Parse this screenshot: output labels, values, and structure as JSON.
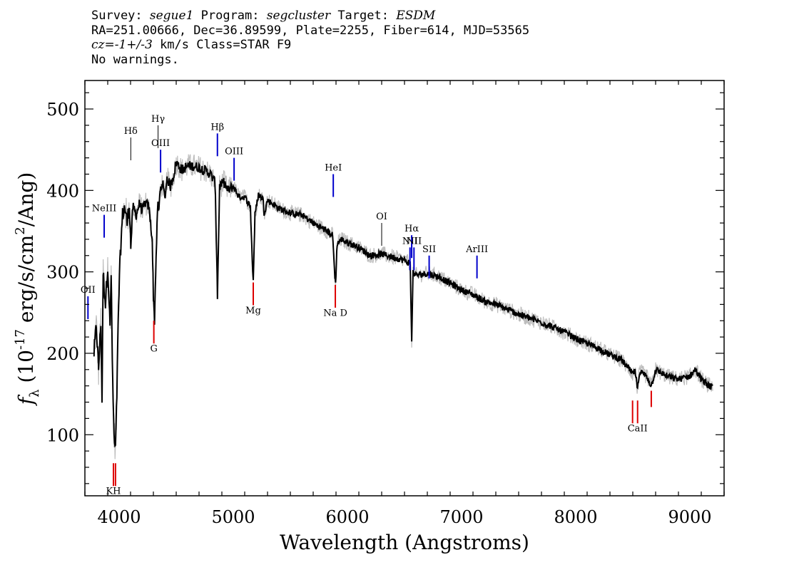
{
  "header": {
    "line1": {
      "survey_label": "Survey: ",
      "survey": "segue1",
      "program_label": " Program: ",
      "program": "segcluster",
      "target_label": " Target: ",
      "target": "ESDM"
    },
    "line2": "RA=251.00666, Dec=36.89599, Plate=2255, Fiber=614, MJD=53565",
    "line3": {
      "cz": "cz=-1+/-3",
      "rest": " km/s Class=STAR F9"
    },
    "line4": "No warnings."
  },
  "chart_data": {
    "type": "line",
    "xlabel": "Wavelength (Angstroms)",
    "ylabel": "f_λ (10^-17 erg/s/cm^2/Ang)",
    "xlim": [
      3700,
      9300
    ],
    "ylim": [
      25,
      535
    ],
    "xticks": [
      4000,
      5000,
      6000,
      7000,
      8000,
      9000
    ],
    "yticks": [
      100,
      200,
      300,
      400,
      500
    ],
    "series": [
      {
        "color": "#000000",
        "points": [
          [
            3780,
            200
          ],
          [
            3800,
            235
          ],
          [
            3820,
            180
          ],
          [
            3840,
            240
          ],
          [
            3850,
            140
          ],
          [
            3860,
            300
          ],
          [
            3880,
            260
          ],
          [
            3900,
            310
          ],
          [
            3920,
            230
          ],
          [
            3930,
            300
          ],
          [
            3940,
            190
          ],
          [
            3955,
            95
          ],
          [
            3968,
            80
          ],
          [
            3980,
            150
          ],
          [
            3995,
            260
          ],
          [
            4010,
            320
          ],
          [
            4030,
            370
          ],
          [
            4050,
            380
          ],
          [
            4070,
            360
          ],
          [
            4090,
            385
          ],
          [
            4102,
            330
          ],
          [
            4120,
            380
          ],
          [
            4150,
            370
          ],
          [
            4180,
            385
          ],
          [
            4200,
            375
          ],
          [
            4230,
            385
          ],
          [
            4260,
            380
          ],
          [
            4290,
            340
          ],
          [
            4300,
            270
          ],
          [
            4310,
            240
          ],
          [
            4320,
            300
          ],
          [
            4340,
            390
          ],
          [
            4345,
            370
          ],
          [
            4360,
            400
          ],
          [
            4380,
            410
          ],
          [
            4400,
            390
          ],
          [
            4420,
            415
          ],
          [
            4450,
            405
          ],
          [
            4480,
            420
          ],
          [
            4500,
            435
          ],
          [
            4550,
            425
          ],
          [
            4600,
            430
          ],
          [
            4650,
            430
          ],
          [
            4700,
            428
          ],
          [
            4750,
            425
          ],
          [
            4800,
            420
          ],
          [
            4840,
            410
          ],
          [
            4858,
            300
          ],
          [
            4861,
            270
          ],
          [
            4880,
            405
          ],
          [
            4920,
            410
          ],
          [
            4950,
            400
          ],
          [
            5000,
            405
          ],
          [
            5050,
            392
          ],
          [
            5100,
            392
          ],
          [
            5150,
            380
          ],
          [
            5170,
            300
          ],
          [
            5175,
            290
          ],
          [
            5190,
            370
          ],
          [
            5220,
            395
          ],
          [
            5260,
            390
          ],
          [
            5270,
            372
          ],
          [
            5300,
            388
          ],
          [
            5400,
            378
          ],
          [
            5500,
            372
          ],
          [
            5600,
            370
          ],
          [
            5700,
            360
          ],
          [
            5800,
            352
          ],
          [
            5870,
            345
          ],
          [
            5890,
            295
          ],
          [
            5896,
            285
          ],
          [
            5910,
            335
          ],
          [
            5950,
            340
          ],
          [
            6000,
            336
          ],
          [
            6100,
            330
          ],
          [
            6200,
            320
          ],
          [
            6300,
            322
          ],
          [
            6400,
            318
          ],
          [
            6500,
            314
          ],
          [
            6550,
            310
          ],
          [
            6563,
            215
          ],
          [
            6575,
            300
          ],
          [
            6600,
            296
          ],
          [
            6700,
            298
          ],
          [
            6800,
            294
          ],
          [
            6900,
            286
          ],
          [
            7000,
            278
          ],
          [
            7100,
            272
          ],
          [
            7200,
            264
          ],
          [
            7300,
            260
          ],
          [
            7400,
            254
          ],
          [
            7500,
            248
          ],
          [
            7600,
            243
          ],
          [
            7700,
            238
          ],
          [
            7800,
            232
          ],
          [
            7900,
            226
          ],
          [
            8000,
            218
          ],
          [
            8100,
            212
          ],
          [
            8200,
            206
          ],
          [
            8300,
            198
          ],
          [
            8400,
            192
          ],
          [
            8498,
            175
          ],
          [
            8520,
            178
          ],
          [
            8542,
            155
          ],
          [
            8560,
            178
          ],
          [
            8620,
            172
          ],
          [
            8662,
            160
          ],
          [
            8700,
            180
          ],
          [
            8800,
            172
          ],
          [
            8900,
            168
          ],
          [
            9000,
            172
          ],
          [
            9050,
            180
          ],
          [
            9100,
            168
          ],
          [
            9150,
            162
          ],
          [
            9200,
            158
          ]
        ]
      }
    ],
    "line_markers": [
      {
        "label": "KH",
        "wavelength": 3950,
        "type": "absorption",
        "color": "#dd0000",
        "flux_label": 45
      },
      {
        "label": "G",
        "wavelength": 4304,
        "type": "absorption",
        "color": "#dd0000",
        "flux_label": 220
      },
      {
        "label": "Mg",
        "wavelength": 5175,
        "type": "absorption",
        "color": "#dd0000",
        "flux_label": 267
      },
      {
        "label": "Na D",
        "wavelength": 5894,
        "type": "absorption",
        "color": "#dd0000",
        "flux_label": 264
      },
      {
        "label": "CaII",
        "wavelength": 8542,
        "type": "absorption",
        "color": "#dd0000",
        "flux_label": 122
      },
      {
        "label": "OII",
        "wavelength": 3727,
        "type": "emission",
        "color": "#0000cc",
        "flux_label": 270
      },
      {
        "label": "NeIII",
        "wavelength": 3869,
        "type": "emission",
        "color": "#0000cc",
        "flux_label": 370
      },
      {
        "label": "Hδ",
        "wavelength": 4102,
        "type": "balmer",
        "color": "#000000",
        "flux_label": 465
      },
      {
        "label": "Hγ",
        "wavelength": 4341,
        "type": "balmer",
        "color": "#000000",
        "flux_label": 480
      },
      {
        "label": "OIII",
        "wavelength": 4363,
        "type": "emission",
        "color": "#0000cc",
        "flux_label": 450
      },
      {
        "label": "Hβ",
        "wavelength": 4861,
        "type": "emission",
        "color": "#0000cc",
        "flux_label": 470
      },
      {
        "label": "OIII",
        "wavelength": 5007,
        "type": "emission",
        "color": "#0000cc",
        "flux_label": 440
      },
      {
        "label": "HeI",
        "wavelength": 5876,
        "type": "emission",
        "color": "#0000cc",
        "flux_label": 420
      },
      {
        "label": "OI",
        "wavelength": 6300,
        "type": "emission",
        "color": "#000000",
        "flux_label": 360
      },
      {
        "label": "NII",
        "wavelength": 6548,
        "type": "emission",
        "color": "#0000cc",
        "flux_label": 330
      },
      {
        "label": "Hα",
        "wavelength": 6563,
        "type": "emission",
        "color": "#0000cc",
        "flux_label": 345
      },
      {
        "label": "NII",
        "wavelength": 6583,
        "type": "emission",
        "color": "#0000cc",
        "flux_label": 330
      },
      {
        "label": "SII",
        "wavelength": 6716,
        "type": "emission",
        "color": "#0000cc",
        "flux_label": 320
      },
      {
        "label": "ArIII",
        "wavelength": 7135,
        "type": "emission",
        "color": "#0000cc",
        "flux_label": 320
      }
    ]
  }
}
